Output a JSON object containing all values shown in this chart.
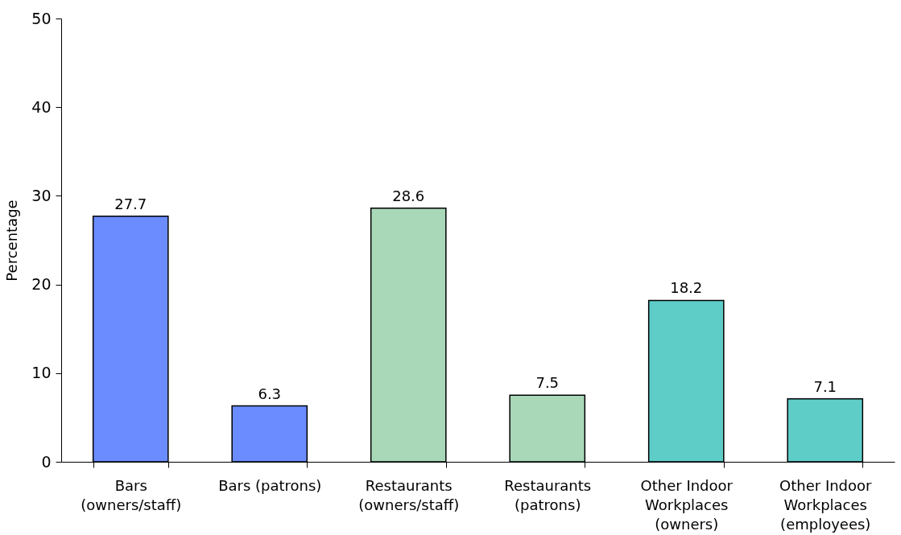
{
  "chart_data": {
    "type": "bar",
    "ylabel": "Percentage",
    "categories": [
      "Bars\n(owners/staff)",
      "Bars (patrons)",
      "Restaurants\n(owners/staff)",
      "Restaurants\n(patrons)",
      "Other Indoor\nWorkplaces\n(owners)",
      "Other Indoor\nWorkplaces\n(employees)"
    ],
    "values": [
      27.7,
      6.3,
      28.6,
      7.5,
      18.2,
      7.1
    ],
    "colors": [
      "#6b8cff",
      "#6b8cff",
      "#a8d8b8",
      "#a8d8b8",
      "#5ecdc8",
      "#5ecdc8"
    ],
    "ylim": [
      0,
      50
    ],
    "yticks": [
      0,
      10,
      20,
      30,
      40,
      50
    ],
    "grid": false,
    "legend": false,
    "data_labels": true
  }
}
